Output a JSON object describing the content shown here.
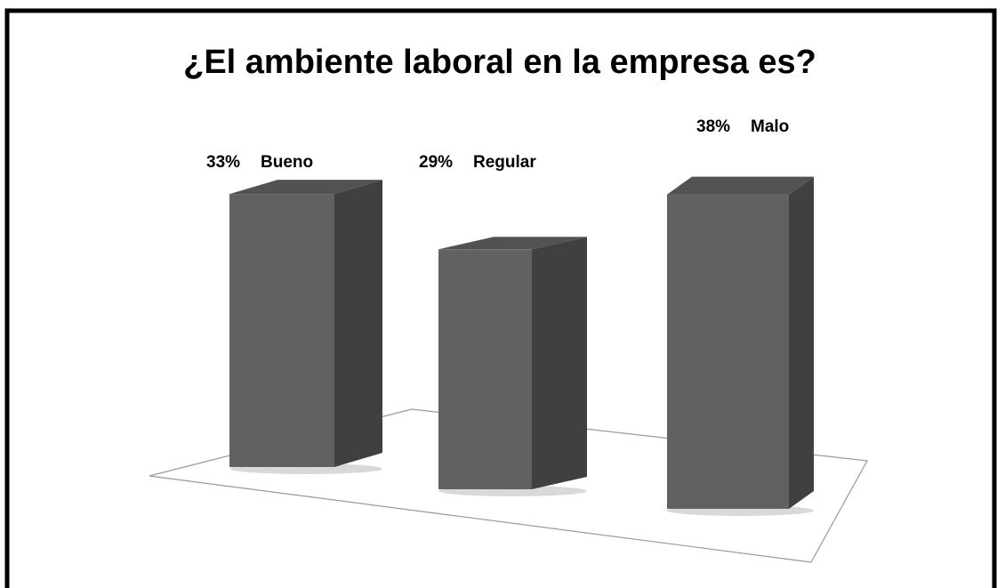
{
  "chart_data": {
    "type": "bar3d",
    "title": "¿El ambiente laboral en la empresa es?",
    "categories": [
      "Bueno",
      "Regular",
      "Malo"
    ],
    "values": [
      33,
      29,
      38
    ],
    "value_labels": [
      "33%",
      "29%",
      "38%"
    ],
    "color": "#616161"
  }
}
